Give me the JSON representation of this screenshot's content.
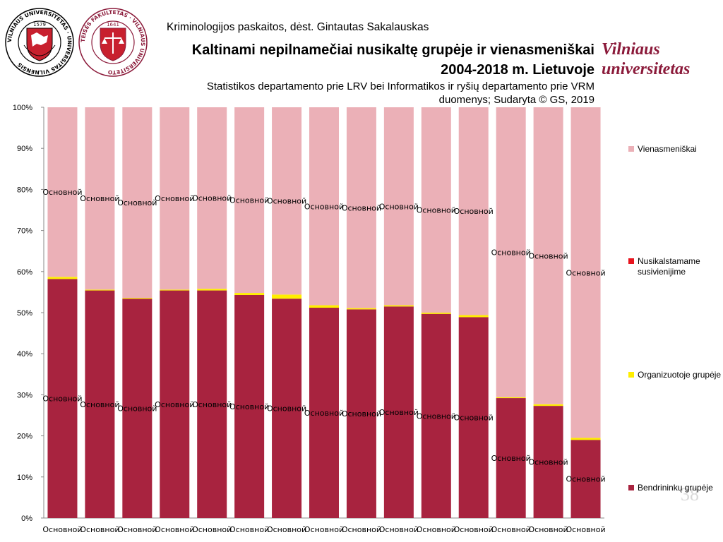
{
  "header": {
    "course_line": "Kriminologijos paskaitos, dėst. Gintautas Sakalauskas",
    "title_line1": "Kaltinami nepilnamečiai nusikaltę grupėje ir vienasmeniškai",
    "title_line2": "2004-2018 m. Lietuvoje",
    "source_line1": "Statistikos departamento prie LRV bei Informatikos ir ryšių departamento prie VRM",
    "source_line2": "duomenys; Sudaryta © GS, 2019",
    "brand_line1": "Vilniaus",
    "brand_line2": "universitetas",
    "slide_number": "38"
  },
  "logos": {
    "left_logo_text": "VILNIAUS UNIVERSITETAS · UNIVERSITAS VILNENSIS",
    "left_logo_year": "1579",
    "right_logo_text": "TEISĖS FAKULTETAS · VILNIAUS UNIVERSITETO",
    "right_logo_year": "1641"
  },
  "colors": {
    "bendrininku": "#a8233f",
    "organizuotoje": "#ffee00",
    "nusikalstamame": "#e8141e",
    "vienasmeniskai": "#ebb0b7",
    "brand": "#8b1a3a"
  },
  "chart_data": {
    "type": "bar",
    "stacked": true,
    "percent": true,
    "categories": [
      "Основной",
      "Основной",
      "Основной",
      "Основной",
      "Основной",
      "Основной",
      "Основной",
      "Основной",
      "Основной",
      "Основной",
      "Основной",
      "Основной",
      "Основной",
      "Основной",
      "Основной"
    ],
    "yticks": [
      "0%",
      "10%",
      "20%",
      "30%",
      "40%",
      "50%",
      "60%",
      "70%",
      "80%",
      "90%",
      "100%"
    ],
    "ylim": [
      0,
      100
    ],
    "grid": false,
    "legend_position": "right",
    "data_label_text": "Основной",
    "series": [
      {
        "name": "Bendrininkų grupėje",
        "color": "#a8233f",
        "values": [
          58.2,
          55.4,
          53.4,
          55.4,
          55.4,
          54.3,
          53.4,
          51.2,
          50.8,
          51.5,
          49.7,
          48.9,
          29.2,
          27.3,
          19.0
        ]
      },
      {
        "name": "Organizuotoje grupėje",
        "color": "#ffee00",
        "values": [
          0.5,
          0.2,
          0.2,
          0.2,
          0.4,
          0.5,
          1.0,
          0.6,
          0.3,
          0.3,
          0.3,
          0.5,
          0.2,
          0.4,
          0.5
        ]
      },
      {
        "name": "Nusikalstamame susivienijime",
        "color": "#e8141e",
        "values": [
          0,
          0,
          0,
          0,
          0,
          0,
          0,
          0,
          0,
          0,
          0,
          0,
          0,
          0,
          0
        ]
      },
      {
        "name": "Vienasmeniškai",
        "color": "#ebb0b7",
        "values": [
          41.3,
          44.4,
          46.4,
          44.4,
          44.2,
          45.2,
          45.6,
          48.2,
          48.9,
          48.2,
          50.0,
          50.6,
          70.6,
          72.3,
          80.5
        ]
      }
    ]
  }
}
